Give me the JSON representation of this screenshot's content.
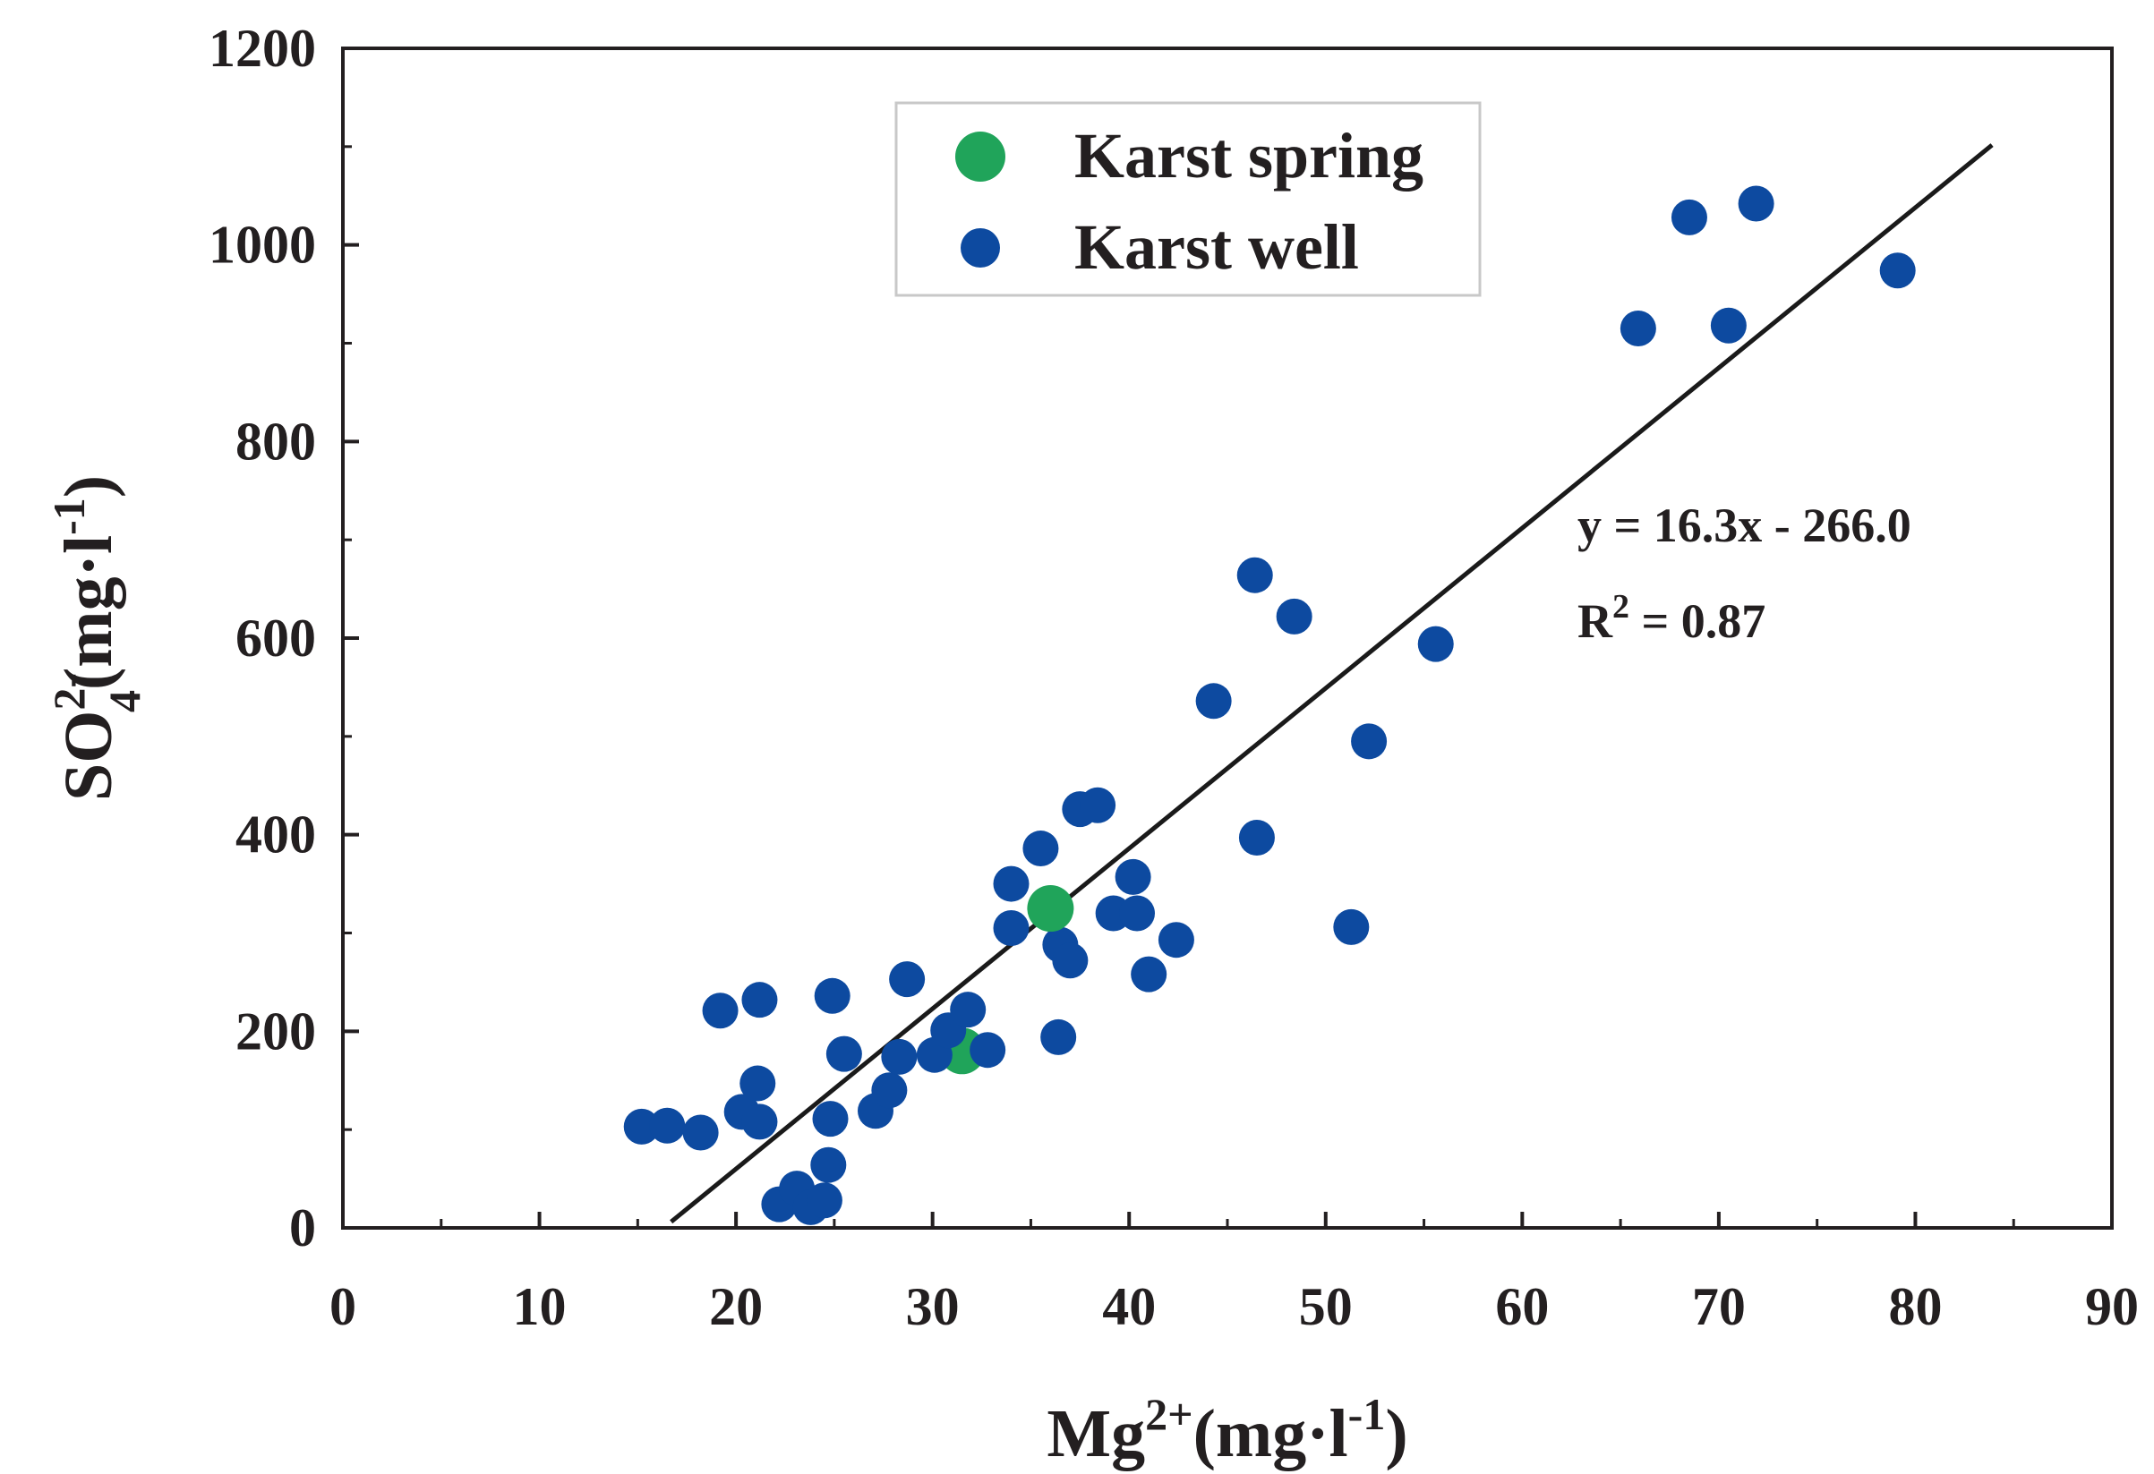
{
  "chart_data": {
    "type": "scatter",
    "xlabel": {
      "base": "Mg",
      "sup": "2+",
      "unit_open": "(mg·l",
      "unit_sup": "-1",
      "unit_close": ")"
    },
    "ylabel": {
      "base": "SO",
      "sup": "2-",
      "sub": "4",
      "unit_open": "(mg·l",
      "unit_sup": "-1",
      "unit_close": ")"
    },
    "xlim": [
      0,
      90
    ],
    "ylim": [
      0,
      1200
    ],
    "x_ticks": [
      0,
      10,
      20,
      30,
      40,
      50,
      60,
      70,
      80,
      90
    ],
    "y_ticks": [
      0,
      200,
      400,
      600,
      800,
      1000,
      1200
    ],
    "x_tick_labels": [
      "0",
      "10",
      "20",
      "30",
      "40",
      "50",
      "60",
      "70",
      "80",
      "90"
    ],
    "y_tick_labels": [
      "0",
      "200",
      "400",
      "600",
      "800",
      "1000",
      "1200"
    ],
    "legend_position": "top-center",
    "series": [
      {
        "name": "Karst spring",
        "color": "#20a45a",
        "points": [
          [
            36.0,
            325
          ],
          [
            31.5,
            180
          ]
        ]
      },
      {
        "name": "Karst well",
        "color": "#0d4aa0",
        "points": [
          [
            15.2,
            103
          ],
          [
            16.5,
            104
          ],
          [
            18.2,
            97
          ],
          [
            19.2,
            221
          ],
          [
            20.3,
            118
          ],
          [
            21.2,
            108
          ],
          [
            21.1,
            147
          ],
          [
            21.2,
            232
          ],
          [
            22.2,
            24
          ],
          [
            23.1,
            40
          ],
          [
            23.8,
            21
          ],
          [
            24.5,
            28
          ],
          [
            24.7,
            64
          ],
          [
            24.8,
            111
          ],
          [
            24.9,
            236
          ],
          [
            25.5,
            177
          ],
          [
            27.1,
            119
          ],
          [
            27.8,
            140
          ],
          [
            28.3,
            174
          ],
          [
            28.7,
            253
          ],
          [
            30.1,
            176
          ],
          [
            30.8,
            201
          ],
          [
            31.8,
            222
          ],
          [
            32.8,
            181
          ],
          [
            34.0,
            350
          ],
          [
            34.0,
            305
          ],
          [
            35.5,
            386
          ],
          [
            36.4,
            194
          ],
          [
            36.5,
            288
          ],
          [
            37.0,
            272
          ],
          [
            37.5,
            426
          ],
          [
            38.4,
            430
          ],
          [
            39.2,
            320
          ],
          [
            40.2,
            357
          ],
          [
            40.4,
            320
          ],
          [
            41.0,
            258
          ],
          [
            42.4,
            293
          ],
          [
            44.3,
            536
          ],
          [
            46.4,
            664
          ],
          [
            46.5,
            397
          ],
          [
            48.4,
            622
          ],
          [
            51.3,
            306
          ],
          [
            52.2,
            495
          ],
          [
            55.6,
            594
          ],
          [
            65.9,
            915
          ],
          [
            68.5,
            1028
          ],
          [
            70.5,
            918
          ],
          [
            71.9,
            1042
          ],
          [
            79.1,
            974
          ]
        ]
      }
    ],
    "trendline": {
      "label": "y = 16.3x - 266.0",
      "r2_prefix": "R",
      "r2_sup": "2",
      "r2_suffix": " = 0.87",
      "slope": 16.3,
      "intercept": -266.0,
      "x_range": [
        16.7,
        83.9
      ],
      "color": "#1a1a1a"
    }
  }
}
